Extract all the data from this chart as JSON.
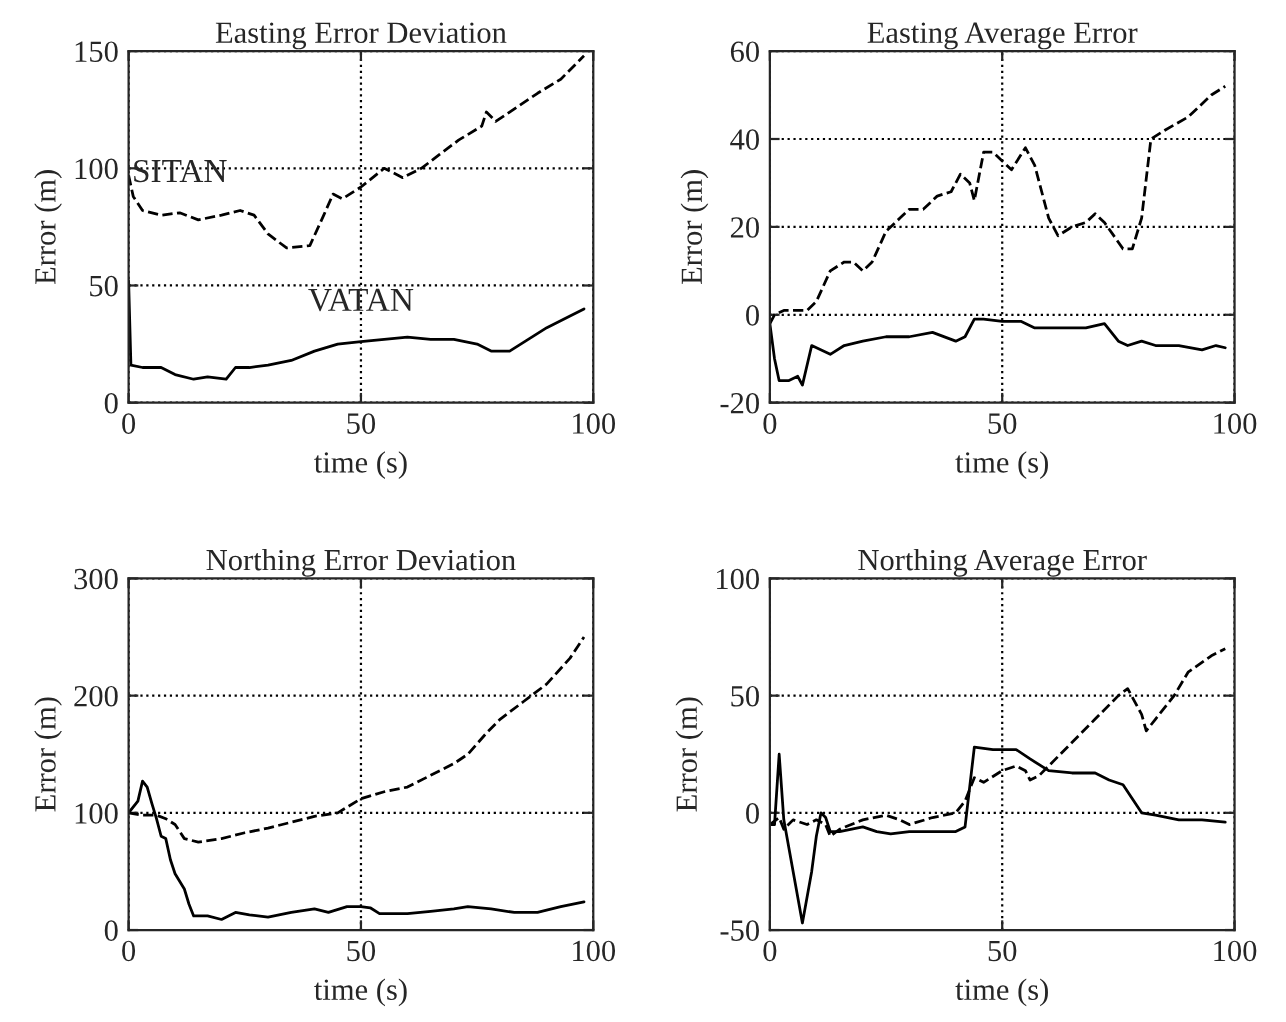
{
  "chart_data": [
    {
      "type": "line",
      "title": "Easting Error Deviation",
      "xlabel": "time (s)",
      "ylabel": "Error (m)",
      "xlim": [
        0,
        100
      ],
      "ylim": [
        0,
        150
      ],
      "xticks": [
        0,
        50,
        100
      ],
      "yticks": [
        0,
        50,
        100,
        150
      ],
      "grid": true,
      "series": [
        {
          "name": "SITAN",
          "color": "#000000",
          "line_style": "dashed",
          "x": [
            0,
            1,
            3,
            7,
            11,
            15,
            20,
            24,
            27,
            30,
            34,
            39,
            42,
            44,
            46,
            50,
            55,
            59,
            63,
            67,
            71,
            76,
            77,
            79,
            82,
            88,
            93,
            98
          ],
          "values": [
            97,
            88,
            82,
            80,
            81,
            78,
            80,
            82,
            80,
            72,
            66,
            67,
            80,
            89,
            87,
            92,
            100,
            96,
            100,
            106,
            112,
            118,
            124,
            120,
            124,
            132,
            138,
            148
          ]
        },
        {
          "name": "VATAN",
          "color": "#000000",
          "line_style": "solid",
          "x": [
            0,
            0.5,
            3,
            7,
            10,
            14,
            17,
            21,
            23,
            26,
            30,
            35,
            40,
            45,
            50,
            55,
            60,
            65,
            70,
            75,
            78,
            82,
            86,
            90,
            95,
            98
          ],
          "values": [
            52,
            16,
            15,
            15,
            12,
            10,
            11,
            10,
            15,
            15,
            16,
            18,
            22,
            25,
            26,
            27,
            28,
            27,
            27,
            25,
            22,
            22,
            27,
            32,
            37,
            40
          ]
        }
      ]
    },
    {
      "type": "line",
      "title": "Easting Average Error",
      "xlabel": "time (s)",
      "ylabel": "Error (m)",
      "xlim": [
        0,
        100
      ],
      "ylim": [
        -20,
        60
      ],
      "xticks": [
        0,
        50,
        100
      ],
      "yticks": [
        -20,
        0,
        20,
        40,
        60
      ],
      "grid": true,
      "series": [
        {
          "color": "#000000",
          "line_style": "dashed",
          "x": [
            0,
            1,
            3,
            8,
            10,
            13,
            16,
            18,
            20,
            22,
            25,
            28,
            30,
            33,
            36,
            39,
            41,
            43,
            44,
            46,
            48,
            50,
            52,
            55,
            57,
            60,
            62,
            65,
            68,
            70,
            72,
            74,
            76,
            78,
            80,
            82,
            85,
            90,
            95,
            98
          ],
          "values": [
            -2,
            0,
            1,
            1,
            3,
            10,
            12,
            12,
            10,
            12,
            19,
            22,
            24,
            24,
            27,
            28,
            32,
            30,
            26,
            37,
            37,
            35,
            33,
            38,
            34,
            22,
            18,
            20,
            21,
            23,
            21,
            18,
            15,
            15,
            22,
            40,
            42,
            45,
            50,
            52
          ]
        },
        {
          "color": "#000000",
          "line_style": "solid",
          "x": [
            0,
            1,
            2,
            4,
            6,
            7,
            9,
            13,
            16,
            20,
            25,
            30,
            35,
            40,
            42,
            44,
            46,
            50,
            54,
            57,
            62,
            68,
            72,
            75,
            77,
            80,
            83,
            88,
            93,
            96,
            98
          ],
          "values": [
            -2,
            -10,
            -15,
            -15,
            -14,
            -16,
            -7,
            -9,
            -7,
            -6,
            -5,
            -5,
            -4,
            -6,
            -5,
            -1,
            -1,
            -1.5,
            -1.5,
            -3,
            -3,
            -3,
            -2,
            -6,
            -7,
            -6,
            -7,
            -7,
            -8,
            -7,
            -7.5
          ]
        }
      ]
    },
    {
      "type": "line",
      "title": "Northing Error Deviation",
      "xlabel": "time (s)",
      "ylabel": "Error (m)",
      "xlim": [
        0,
        100
      ],
      "ylim": [
        0,
        300
      ],
      "xticks": [
        0,
        50,
        100
      ],
      "yticks": [
        0,
        100,
        200,
        300
      ],
      "grid": true,
      "series": [
        {
          "color": "#000000",
          "line_style": "dashed",
          "x": [
            0,
            3,
            6,
            8,
            10,
            12,
            15,
            20,
            25,
            30,
            35,
            40,
            45,
            50,
            55,
            60,
            65,
            70,
            73,
            77,
            80,
            85,
            90,
            95,
            98
          ],
          "values": [
            100,
            98,
            98,
            95,
            90,
            78,
            75,
            78,
            83,
            87,
            92,
            97,
            100,
            112,
            118,
            122,
            132,
            142,
            150,
            168,
            180,
            195,
            210,
            232,
            250
          ]
        },
        {
          "color": "#000000",
          "line_style": "solid",
          "x": [
            0,
            2,
            3,
            4,
            5,
            6,
            7,
            8,
            9,
            10,
            12,
            13,
            14,
            17,
            20,
            23,
            26,
            30,
            35,
            40,
            43,
            47,
            50,
            52,
            54,
            60,
            65,
            70,
            73,
            78,
            83,
            88,
            93,
            98
          ],
          "values": [
            100,
            110,
            127,
            122,
            108,
            95,
            80,
            78,
            60,
            48,
            35,
            22,
            12,
            12,
            9,
            15,
            13,
            11,
            15,
            18,
            15,
            20,
            20,
            19,
            14,
            14,
            16,
            18,
            20,
            18,
            15,
            15,
            20,
            24
          ]
        }
      ]
    },
    {
      "type": "line",
      "title": "Northing Average Error",
      "xlabel": "time (s)",
      "ylabel": "Error (m)",
      "xlim": [
        0,
        100
      ],
      "ylim": [
        -50,
        100
      ],
      "xticks": [
        0,
        50,
        100
      ],
      "yticks": [
        -50,
        0,
        50,
        100
      ],
      "grid": true,
      "series": [
        {
          "color": "#000000",
          "line_style": "solid",
          "x": [
            0,
            1,
            2,
            3,
            7,
            9,
            10,
            11,
            12,
            13,
            15,
            20,
            23,
            26,
            30,
            35,
            40,
            42,
            44,
            48,
            53,
            56,
            60,
            65,
            70,
            73,
            76,
            78,
            80,
            83,
            88,
            93,
            98
          ],
          "values": [
            -5,
            -5,
            25,
            -3,
            -47,
            -25,
            -10,
            0,
            -2,
            -8,
            -8,
            -6,
            -8,
            -9,
            -8,
            -8,
            -8,
            -6,
            28,
            27,
            27,
            23,
            18,
            17,
            17,
            14,
            12,
            6,
            0,
            -1,
            -3,
            -3,
            -4
          ]
        },
        {
          "color": "#000000",
          "line_style": "dashed",
          "x": [
            0,
            2,
            3,
            5,
            8,
            10,
            12,
            13,
            15,
            20,
            25,
            28,
            30,
            35,
            40,
            42,
            44,
            46,
            50,
            53,
            55,
            56,
            58,
            60,
            65,
            70,
            75,
            77,
            80,
            81,
            83,
            87,
            90,
            95,
            98
          ],
          "values": [
            -5,
            -2,
            -7,
            -3,
            -5,
            -3,
            -5,
            -10,
            -7,
            -3,
            -1,
            -3,
            -5,
            -2,
            0,
            5,
            15,
            13,
            18,
            20,
            18,
            14,
            16,
            20,
            30,
            40,
            50,
            53,
            42,
            35,
            40,
            50,
            60,
            67,
            70
          ]
        }
      ]
    }
  ]
}
